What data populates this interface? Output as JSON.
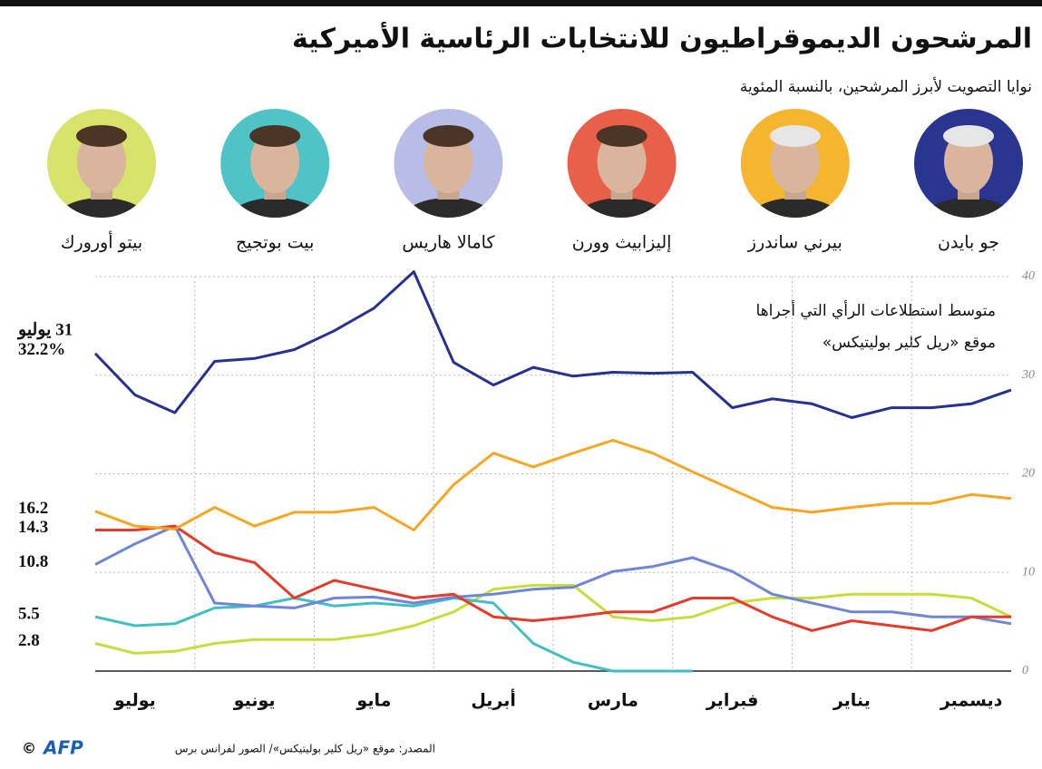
{
  "header": {
    "title": "المرشحون الديموقراطيون للانتخابات الرئاسية الأميركية",
    "subtitle": "نوايا التصويت لأبرز المرشحين، بالنسبة المئوية"
  },
  "chart_data": {
    "type": "line",
    "note": [
      "متوسط استطلاعات الرأي التي أجراها",
      "موقع «ريل كلير بوليتيكس»"
    ],
    "end_date": "31 يوليو",
    "categories": [
      null,
      "يوليو",
      null,
      null,
      "يونيو",
      null,
      null,
      "مايو",
      null,
      null,
      "أبريل",
      null,
      null,
      "مارس",
      null,
      null,
      "فبراير",
      null,
      null,
      "يناير",
      null,
      null,
      "ديسمبر",
      null
    ],
    "ylim": [
      0,
      40
    ],
    "yticks": [
      0,
      10,
      20,
      30,
      40
    ],
    "grid": true,
    "series": [
      {
        "name": "جو بايدن",
        "color": "#27318f",
        "photo_color": "#2a3590",
        "end_label": "32.2%",
        "values": [
          32.2,
          28,
          26.2,
          31.4,
          31.7,
          32.6,
          34.5,
          36.8,
          40.5,
          31.3,
          29,
          30.8,
          29.9,
          30.3,
          30.2,
          30.3,
          26.7,
          27.6,
          27.1,
          25.7,
          26.7,
          26.7,
          27.1,
          28.5
        ]
      },
      {
        "name": "بيرني ساندرز",
        "color": "#f5a623",
        "photo_color": "#f5b52e",
        "values": [
          16.2,
          14.7,
          14.4,
          16.6,
          14.7,
          16.1,
          16.1,
          16.6,
          14.3,
          18.9,
          22.1,
          20.7,
          22.1,
          23.4,
          22.1,
          20.2,
          18.4,
          16.6,
          16.1,
          16.6,
          17,
          17,
          17.9,
          17.5
        ]
      },
      {
        "name": "إليزابيث وورن",
        "color": "#e53b2c",
        "photo_color": "#e8604a",
        "values": [
          14.3,
          14.3,
          14.7,
          12,
          11,
          7.4,
          9.2,
          8.3,
          7.4,
          7.8,
          5.5,
          5.1,
          5.5,
          6,
          6,
          7.4,
          7.4,
          5.5,
          4.1,
          5.1,
          4.6,
          4.1,
          5.5,
          5.5
        ]
      },
      {
        "name": "كامالا هاريس",
        "color": "#6f86d6",
        "photo_color": "#b7bde6",
        "values": [
          10.8,
          12.9,
          14.7,
          6.9,
          6.6,
          6.4,
          7.4,
          7.5,
          6.9,
          7.5,
          7.8,
          8.3,
          8.5,
          10.1,
          10.6,
          11.5,
          10.1,
          7.8,
          6.9,
          6,
          6,
          5.5,
          5.5,
          4.8
        ]
      },
      {
        "name": "بيت بوتجيج",
        "color": "#3fbfc4",
        "photo_color": "#4fc3c6",
        "values": [
          5.5,
          4.6,
          4.8,
          6.4,
          6.6,
          7.4,
          6.6,
          6.9,
          6.6,
          7.4,
          6.9,
          2.8,
          0.9,
          0,
          0,
          0,
          null,
          null,
          null,
          null,
          null,
          null,
          null,
          null
        ]
      },
      {
        "name": "بيتو أورورك",
        "color": "#c8dc3c",
        "photo_color": "#d7e36a",
        "values": [
          2.8,
          1.8,
          2,
          2.8,
          3.2,
          3.2,
          3.2,
          3.7,
          4.6,
          6,
          8.3,
          8.7,
          8.7,
          5.5,
          5.1,
          5.5,
          6.9,
          7.4,
          7.4,
          7.8,
          7.8,
          7.8,
          7.4,
          5.5
        ]
      }
    ]
  },
  "footer": {
    "source": "المصدر: موقع «ريل كلير بوليتيكس»/ الصور لفرانس برس",
    "logo": "AFP",
    "copyright": "©"
  }
}
